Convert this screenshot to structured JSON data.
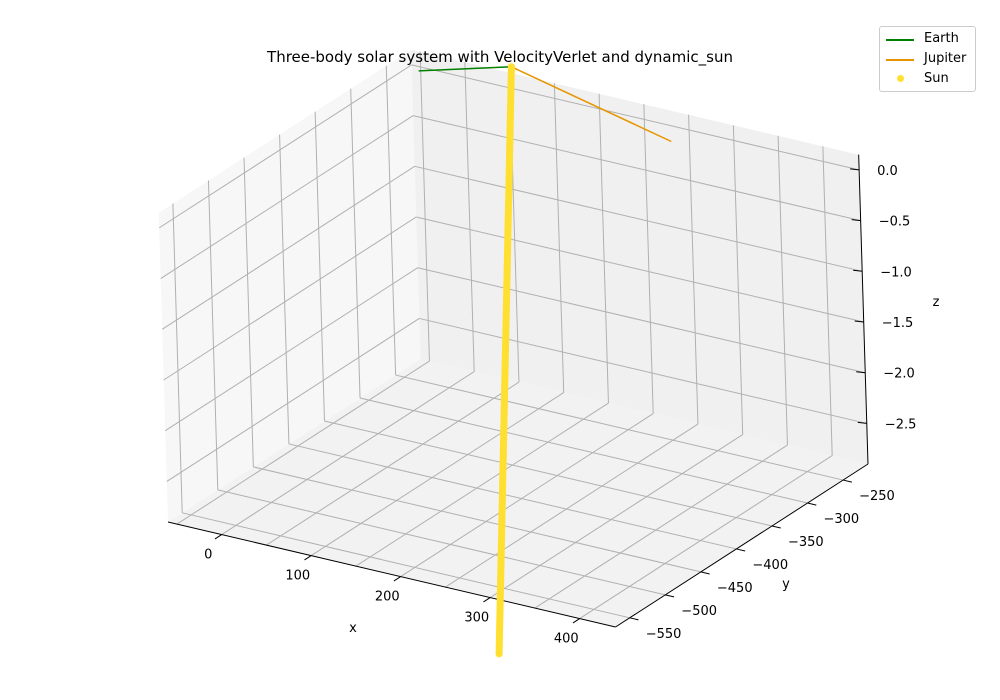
{
  "chart_data": {
    "type": "line3d",
    "title": "Three-body solar system with VelocityVerlet and dynamic_sun",
    "xlabel": "x",
    "ylabel": "y",
    "zlabel": "z",
    "xlim": [
      -60,
      440
    ],
    "ylim": [
      -570,
      -215
    ],
    "zlim": [
      -2.9,
      0.15
    ],
    "xticks": [
      0,
      100,
      200,
      300,
      400
    ],
    "yticks": [
      -250,
      -300,
      -350,
      -400,
      -450,
      -500,
      -550
    ],
    "zticks": [
      0.0,
      -0.5,
      -1.0,
      -1.5,
      -2.0,
      -2.5
    ],
    "xtick_labels": [
      "0",
      "100",
      "200",
      "300",
      "400"
    ],
    "ytick_labels": [
      "−250",
      "−300",
      "−350",
      "−400",
      "−450",
      "−500",
      "−550"
    ],
    "ztick_labels": [
      "0.0",
      "−0.5",
      "−1.0",
      "−1.5",
      "−2.0",
      "−2.5"
    ],
    "grid": true,
    "legend_position": "top-right",
    "series": [
      {
        "name": "Earth",
        "kind": "line",
        "color": "#008000",
        "points": [
          [
            -40,
            -230,
            0.05
          ],
          [
            40,
            -200,
            0.12
          ]
        ]
      },
      {
        "name": "Jupiter",
        "kind": "line",
        "color": "#e69500",
        "points": [
          [
            40,
            -200,
            0.12
          ],
          [
            250,
            -240,
            0.0
          ]
        ]
      },
      {
        "name": "Sun",
        "kind": "scatter",
        "color": "#ffe030",
        "points": [
          [
            40,
            -200,
            0.12
          ],
          [
            300,
            -560,
            -3.5
          ]
        ]
      }
    ]
  }
}
